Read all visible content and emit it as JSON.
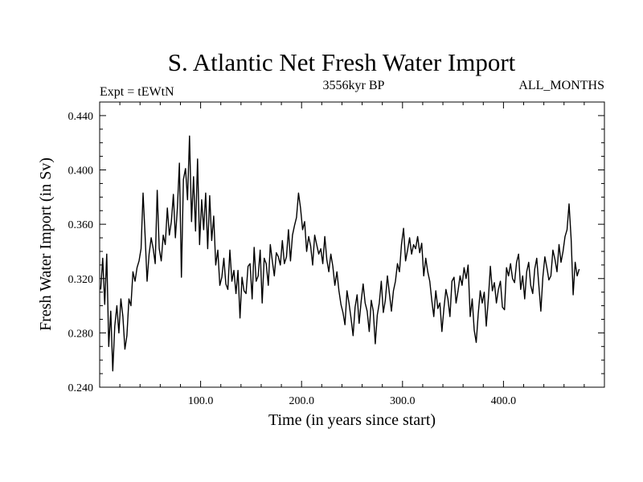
{
  "chart_data": {
    "type": "line",
    "title": "S. Atlantic Net Fresh Water Import",
    "subtitle_left": "Expt = tEWtN",
    "subtitle_center": "3556kyr BP",
    "subtitle_right": "ALL_MONTHS",
    "xlabel": "Time (in years since start)",
    "ylabel": "Fresh Water Import (in Sv)",
    "xlim": [
      0,
      500
    ],
    "ylim": [
      0.24,
      0.45
    ],
    "x_ticks": [
      100,
      200,
      300,
      400
    ],
    "x_tick_labels": [
      "100.0",
      "200.0",
      "300.0",
      "400.0"
    ],
    "y_ticks": [
      0.24,
      0.28,
      0.32,
      0.36,
      0.4,
      0.44
    ],
    "y_tick_labels": [
      "0.240",
      "0.280",
      "0.320",
      "0.360",
      "0.400",
      "0.440"
    ],
    "grid": false,
    "series": [
      {
        "name": "net fresh water import",
        "x_start": 1,
        "x_step": 2,
        "values": [
          0.312,
          0.335,
          0.301,
          0.338,
          0.27,
          0.296,
          0.252,
          0.285,
          0.3,
          0.28,
          0.305,
          0.292,
          0.268,
          0.278,
          0.305,
          0.3,
          0.325,
          0.318,
          0.328,
          0.333,
          0.342,
          0.383,
          0.352,
          0.318,
          0.338,
          0.35,
          0.342,
          0.331,
          0.385,
          0.342,
          0.333,
          0.352,
          0.345,
          0.372,
          0.352,
          0.362,
          0.382,
          0.35,
          0.372,
          0.405,
          0.321,
          0.393,
          0.401,
          0.378,
          0.425,
          0.362,
          0.395,
          0.355,
          0.408,
          0.345,
          0.378,
          0.356,
          0.383,
          0.342,
          0.381,
          0.348,
          0.366,
          0.33,
          0.341,
          0.315,
          0.321,
          0.335,
          0.316,
          0.312,
          0.341,
          0.318,
          0.326,
          0.309,
          0.326,
          0.291,
          0.321,
          0.311,
          0.309,
          0.329,
          0.331,
          0.305,
          0.343,
          0.318,
          0.322,
          0.341,
          0.302,
          0.335,
          0.331,
          0.315,
          0.345,
          0.333,
          0.322,
          0.339,
          0.336,
          0.33,
          0.348,
          0.331,
          0.336,
          0.356,
          0.333,
          0.352,
          0.359,
          0.365,
          0.383,
          0.372,
          0.356,
          0.362,
          0.34,
          0.351,
          0.344,
          0.33,
          0.352,
          0.345,
          0.338,
          0.342,
          0.331,
          0.351,
          0.334,
          0.325,
          0.338,
          0.329,
          0.315,
          0.325,
          0.311,
          0.301,
          0.295,
          0.286,
          0.311,
          0.302,
          0.291,
          0.278,
          0.299,
          0.308,
          0.287,
          0.303,
          0.316,
          0.302,
          0.296,
          0.281,
          0.304,
          0.296,
          0.272,
          0.293,
          0.302,
          0.318,
          0.295,
          0.304,
          0.322,
          0.309,
          0.296,
          0.311,
          0.318,
          0.331,
          0.325,
          0.345,
          0.357,
          0.333,
          0.341,
          0.35,
          0.338,
          0.345,
          0.342,
          0.351,
          0.339,
          0.346,
          0.322,
          0.335,
          0.325,
          0.318,
          0.304,
          0.292,
          0.311,
          0.298,
          0.302,
          0.281,
          0.298,
          0.312,
          0.305,
          0.292,
          0.318,
          0.321,
          0.302,
          0.311,
          0.322,
          0.315,
          0.328,
          0.32,
          0.33,
          0.292,
          0.305,
          0.282,
          0.273,
          0.294,
          0.311,
          0.302,
          0.31,
          0.285,
          0.305,
          0.329,
          0.311,
          0.317,
          0.302,
          0.312,
          0.318,
          0.299,
          0.297,
          0.328,
          0.322,
          0.331,
          0.32,
          0.317,
          0.332,
          0.338,
          0.312,
          0.322,
          0.305,
          0.325,
          0.332,
          0.315,
          0.309,
          0.327,
          0.335,
          0.315,
          0.296,
          0.321,
          0.336,
          0.328,
          0.319,
          0.322,
          0.341,
          0.334,
          0.325,
          0.345,
          0.332,
          0.34,
          0.351,
          0.356,
          0.375,
          0.349,
          0.308,
          0.332,
          0.322,
          0.327
        ]
      }
    ]
  }
}
